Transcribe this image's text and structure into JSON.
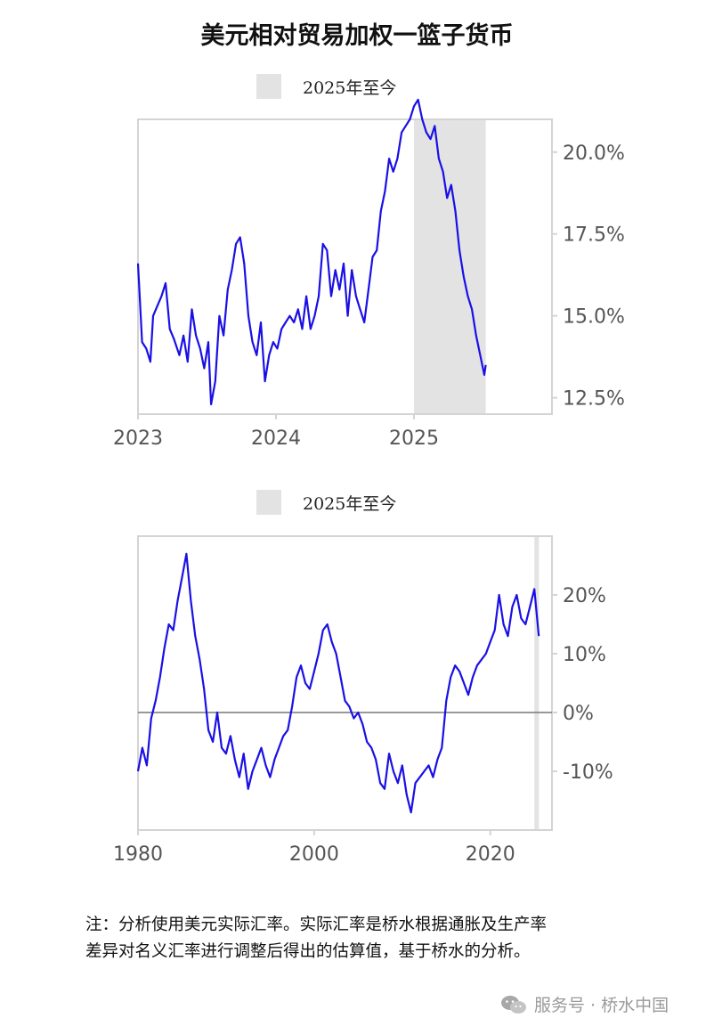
{
  "title": "美元相对贸易加权一篮子货币",
  "colors": {
    "line": "#1a10e6",
    "shade": "#e3e3e3",
    "frame": "#d4d4d4",
    "tick_text": "#555555",
    "zero_line": "#777777"
  },
  "chart_data": [
    {
      "type": "line",
      "title": "",
      "legend": "2025年至今",
      "xlim": [
        2023.0,
        2026.0
      ],
      "ylim": [
        12.0,
        21.0
      ],
      "x_ticks": [
        2023,
        2024,
        2025
      ],
      "x_tick_labels": [
        "2023",
        "2024",
        "2025"
      ],
      "y_ticks": [
        12.5,
        15.0,
        17.5,
        20.0
      ],
      "y_tick_labels": [
        "12.5%",
        "15.0%",
        "17.5%",
        "20.0%"
      ],
      "shaded_region": [
        2025.0,
        2025.52
      ],
      "series": [
        {
          "name": "",
          "x": [
            2023.0,
            2023.03,
            2023.06,
            2023.09,
            2023.11,
            2023.14,
            2023.17,
            2023.2,
            2023.23,
            2023.26,
            2023.3,
            2023.33,
            2023.36,
            2023.39,
            2023.42,
            2023.45,
            2023.48,
            2023.51,
            2023.53,
            2023.56,
            2023.59,
            2023.62,
            2023.65,
            2023.68,
            2023.71,
            2023.74,
            2023.77,
            2023.8,
            2023.83,
            2023.86,
            2023.89,
            2023.92,
            2023.95,
            2023.98,
            2024.01,
            2024.04,
            2024.07,
            2024.1,
            2024.13,
            2024.16,
            2024.19,
            2024.22,
            2024.25,
            2024.28,
            2024.31,
            2024.34,
            2024.37,
            2024.4,
            2024.43,
            2024.46,
            2024.49,
            2024.52,
            2024.55,
            2024.58,
            2024.61,
            2024.64,
            2024.67,
            2024.7,
            2024.73,
            2024.76,
            2024.79,
            2024.82,
            2024.85,
            2024.88,
            2024.91,
            2024.94,
            2024.97,
            2025.0,
            2025.03,
            2025.06,
            2025.09,
            2025.12,
            2025.15,
            2025.18,
            2025.21,
            2025.24,
            2025.27,
            2025.3,
            2025.33,
            2025.36,
            2025.39,
            2025.42,
            2025.45,
            2025.48,
            2025.51,
            2025.52
          ],
          "values": [
            16.6,
            14.2,
            14.0,
            13.6,
            15.0,
            15.3,
            15.6,
            16.0,
            14.6,
            14.3,
            13.8,
            14.4,
            13.6,
            15.2,
            14.4,
            14.0,
            13.4,
            14.2,
            12.3,
            13.0,
            15.0,
            14.4,
            15.8,
            16.4,
            17.2,
            17.4,
            16.6,
            15.0,
            14.2,
            13.8,
            14.8,
            13.0,
            13.8,
            14.2,
            14.0,
            14.6,
            14.8,
            15.0,
            14.8,
            15.2,
            14.6,
            15.6,
            14.6,
            15.0,
            15.6,
            17.2,
            17.0,
            15.6,
            16.4,
            15.8,
            16.6,
            15.0,
            16.4,
            15.6,
            15.2,
            14.8,
            15.8,
            16.8,
            17.0,
            18.2,
            18.8,
            19.8,
            19.4,
            19.8,
            20.6,
            20.8,
            21.0,
            21.4,
            21.6,
            21.0,
            20.6,
            20.4,
            20.8,
            19.8,
            19.4,
            18.6,
            19.0,
            18.2,
            17.0,
            16.2,
            15.6,
            15.2,
            14.4,
            13.8,
            13.2,
            13.5
          ]
        }
      ]
    },
    {
      "type": "line",
      "title": "",
      "legend": "2025年至今",
      "xlim": [
        1980.0,
        2027.0
      ],
      "ylim": [
        -20.0,
        30.0
      ],
      "x_ticks": [
        1980,
        2000,
        2020
      ],
      "x_tick_labels": [
        "1980",
        "2000",
        "2020"
      ],
      "y_ticks": [
        -10,
        0,
        10,
        20
      ],
      "y_tick_labels": [
        "-10%",
        "0%",
        "10%",
        "20%"
      ],
      "zero_line": 0,
      "shaded_region": [
        2025.0,
        2025.52
      ],
      "series": [
        {
          "name": "",
          "x": [
            1980.0,
            1980.5,
            1981.0,
            1981.5,
            1982.0,
            1982.5,
            1983.0,
            1983.5,
            1984.0,
            1984.5,
            1985.0,
            1985.5,
            1986.0,
            1986.5,
            1987.0,
            1987.5,
            1988.0,
            1988.5,
            1989.0,
            1989.5,
            1990.0,
            1990.5,
            1991.0,
            1991.5,
            1992.0,
            1992.5,
            1993.0,
            1993.5,
            1994.0,
            1994.5,
            1995.0,
            1995.5,
            1996.0,
            1996.5,
            1997.0,
            1997.5,
            1998.0,
            1998.5,
            1999.0,
            1999.5,
            2000.0,
            2000.5,
            2001.0,
            2001.5,
            2002.0,
            2002.5,
            2003.0,
            2003.5,
            2004.0,
            2004.5,
            2005.0,
            2005.5,
            2006.0,
            2006.5,
            2007.0,
            2007.5,
            2008.0,
            2008.5,
            2009.0,
            2009.5,
            2010.0,
            2010.5,
            2011.0,
            2011.5,
            2012.0,
            2012.5,
            2013.0,
            2013.5,
            2014.0,
            2014.5,
            2015.0,
            2015.5,
            2016.0,
            2016.5,
            2017.0,
            2017.5,
            2018.0,
            2018.5,
            2019.0,
            2019.5,
            2020.0,
            2020.5,
            2021.0,
            2021.5,
            2022.0,
            2022.5,
            2023.0,
            2023.5,
            2024.0,
            2024.5,
            2025.0,
            2025.5
          ],
          "values": [
            -10.0,
            -6.0,
            -9.0,
            -1.0,
            2.0,
            6.0,
            11.0,
            15.0,
            14.0,
            19.0,
            23.0,
            27.0,
            19.0,
            13.0,
            9.0,
            4.0,
            -3.0,
            -5.0,
            0.0,
            -6.0,
            -7.0,
            -4.0,
            -8.0,
            -11.0,
            -7.0,
            -13.0,
            -10.0,
            -8.0,
            -6.0,
            -9.0,
            -11.0,
            -8.0,
            -6.0,
            -4.0,
            -3.0,
            1.0,
            6.0,
            8.0,
            5.0,
            4.0,
            7.0,
            10.0,
            14.0,
            15.0,
            12.0,
            10.0,
            6.0,
            2.0,
            1.0,
            -1.0,
            0.0,
            -2.0,
            -5.0,
            -6.0,
            -8.0,
            -12.0,
            -13.0,
            -7.0,
            -10.0,
            -12.0,
            -9.0,
            -14.0,
            -17.0,
            -12.0,
            -11.0,
            -10.0,
            -9.0,
            -11.0,
            -8.0,
            -6.0,
            2.0,
            6.0,
            8.0,
            7.0,
            5.0,
            3.0,
            6.0,
            8.0,
            9.0,
            10.0,
            12.0,
            14.0,
            20.0,
            15.0,
            13.0,
            18.0,
            20.0,
            16.0,
            15.0,
            18.0,
            21.0,
            13.0
          ]
        }
      ]
    }
  ],
  "note": {
    "line1": "注：分析使用美元实际汇率。实际汇率是桥水根据通胀及生产率",
    "line2": "差异对名义汇率进行调整后得出的估算值，基于桥水的分析。"
  },
  "watermark": {
    "icon": "wechat-icon",
    "text": "服务号 · 桥水中国"
  }
}
